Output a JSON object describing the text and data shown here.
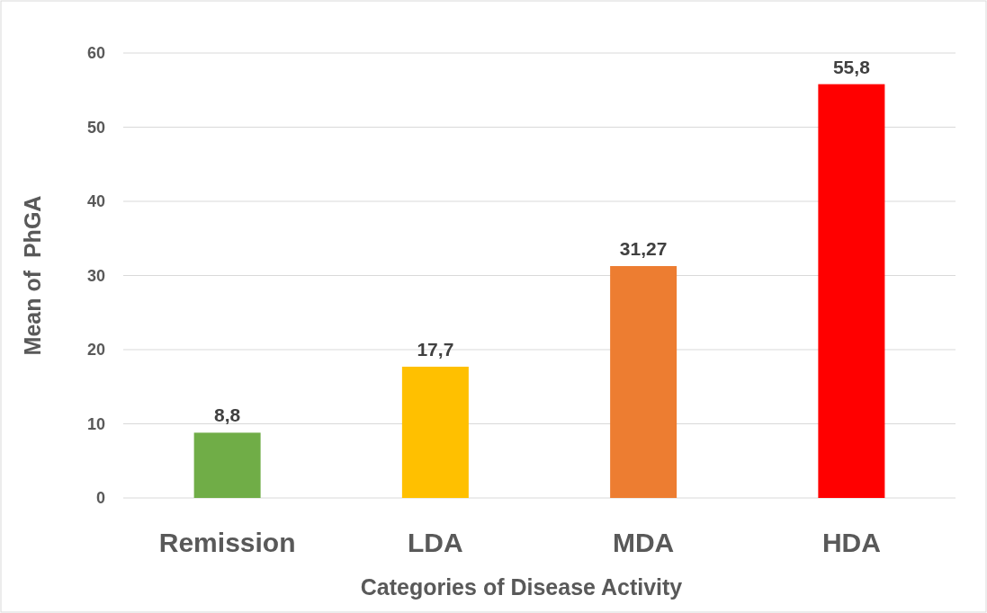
{
  "chart_data": {
    "type": "bar",
    "xlabel": "Categories of Disease Activity",
    "ylabel": "Mean of  PhGA",
    "categories": [
      "Remission",
      "LDA",
      "MDA",
      "HDA"
    ],
    "values": [
      8.8,
      17.7,
      31.27,
      55.8
    ],
    "colors": [
      "#70ad47",
      "#ffc000",
      "#ed7d31",
      "#ff0000"
    ],
    "value_labels": [
      "8,8",
      "17,7",
      "31,27",
      "55,8"
    ],
    "ylim": [
      0,
      60
    ],
    "yticks": [
      0,
      10,
      20,
      30,
      40,
      50,
      60
    ],
    "grid": "y"
  }
}
